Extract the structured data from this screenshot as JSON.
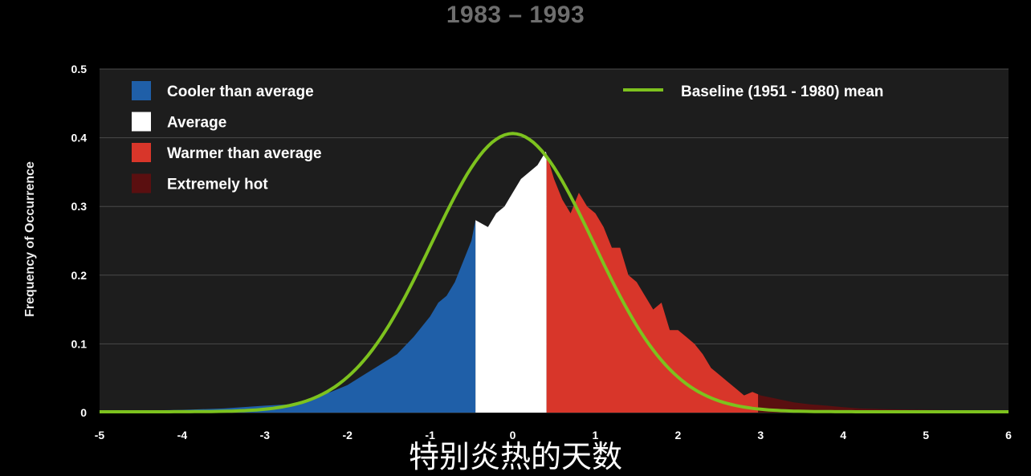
{
  "page": {
    "title": "1983 – 1993",
    "subtitle": "特别炎热的天数"
  },
  "chart_data": {
    "type": "area",
    "title": "1983 – 1993",
    "ylabel": "Frequency of Occurrence",
    "xlabel": "",
    "xlim": [
      -5,
      6
    ],
    "ylim": [
      0,
      0.5
    ],
    "xticks": [
      "-5",
      "-4",
      "-3",
      "-2",
      "-1",
      "0",
      "1",
      "2",
      "3",
      "4",
      "5",
      "6"
    ],
    "yticks": [
      "0",
      "0.1",
      "0.2",
      "0.3",
      "0.4",
      "0.5"
    ],
    "grid": true,
    "legend": [
      {
        "label": "Cooler than average",
        "color": "#1f5fa8"
      },
      {
        "label": "Average",
        "color": "#ffffff"
      },
      {
        "label": "Warmer than average",
        "color": "#d8362a"
      },
      {
        "label": "Extremely hot",
        "color": "#5a0f10"
      }
    ],
    "baseline_label": "Baseline (1951 - 1980) mean",
    "baseline_color": "#7dc21e",
    "baseline": {
      "mean": 0.0,
      "sd": 0.98,
      "peak": 0.405
    },
    "regions": [
      {
        "name": "Cooler than average",
        "from": -5,
        "to": -0.45,
        "color": "#1f5fa8"
      },
      {
        "name": "Average",
        "from": -0.45,
        "to": 0.41,
        "color": "#ffffff"
      },
      {
        "name": "Warmer than average",
        "from": 0.41,
        "to": 2.97,
        "color": "#d8362a"
      },
      {
        "name": "Extremely hot",
        "from": 2.97,
        "to": 6,
        "color": "#5a0f10"
      }
    ],
    "distribution": {
      "x": [
        -5,
        -4,
        -3.5,
        -3,
        -2.7,
        -2.5,
        -2.2,
        -2,
        -1.8,
        -1.6,
        -1.4,
        -1.2,
        -1.0,
        -0.9,
        -0.8,
        -0.7,
        -0.6,
        -0.5,
        -0.45,
        -0.3,
        -0.2,
        -0.1,
        0,
        0.1,
        0.2,
        0.3,
        0.4,
        0.5,
        0.6,
        0.7,
        0.8,
        0.9,
        1.0,
        1.1,
        1.2,
        1.3,
        1.4,
        1.5,
        1.6,
        1.7,
        1.8,
        1.9,
        2.0,
        2.1,
        2.2,
        2.3,
        2.4,
        2.5,
        2.6,
        2.7,
        2.8,
        2.9,
        3.0,
        3.2,
        3.4,
        3.6,
        3.8,
        4.0,
        4.2,
        4.5,
        5.0,
        5.5,
        6
      ],
      "y": [
        0.002,
        0.004,
        0.006,
        0.01,
        0.012,
        0.018,
        0.03,
        0.04,
        0.055,
        0.07,
        0.085,
        0.11,
        0.14,
        0.16,
        0.17,
        0.19,
        0.22,
        0.25,
        0.28,
        0.27,
        0.29,
        0.3,
        0.32,
        0.34,
        0.35,
        0.36,
        0.38,
        0.34,
        0.31,
        0.29,
        0.32,
        0.3,
        0.29,
        0.27,
        0.24,
        0.24,
        0.2,
        0.19,
        0.17,
        0.15,
        0.16,
        0.12,
        0.12,
        0.11,
        0.1,
        0.085,
        0.065,
        0.055,
        0.045,
        0.035,
        0.025,
        0.03,
        0.025,
        0.02,
        0.015,
        0.012,
        0.01,
        0.008,
        0.006,
        0.005,
        0.004,
        0.003,
        0.002
      ]
    }
  }
}
